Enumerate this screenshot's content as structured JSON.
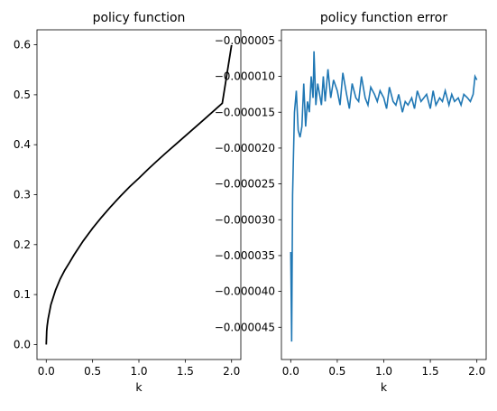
{
  "chart_data": [
    {
      "type": "line",
      "title": "policy function",
      "xlabel": "k",
      "ylabel": "",
      "xlim": [
        -0.1,
        2.1
      ],
      "ylim": [
        -0.03,
        0.63
      ],
      "xticks": [
        0.0,
        0.5,
        1.0,
        1.5,
        2.0
      ],
      "xtick_labels": [
        "0.0",
        "0.5",
        "1.0",
        "1.5",
        "2.0"
      ],
      "yticks": [
        0.0,
        0.1,
        0.2,
        0.3,
        0.4,
        0.5,
        0.6
      ],
      "ytick_labels": [
        "0.0",
        "0.1",
        "0.2",
        "0.3",
        "0.4",
        "0.5",
        "0.6"
      ],
      "grid": false,
      "colors": {
        "line": "#000000"
      },
      "series": [
        {
          "x": [
            0.0,
            0.005,
            0.01,
            0.02,
            0.05,
            0.1,
            0.15,
            0.2,
            0.25,
            0.3,
            0.4,
            0.5,
            0.6,
            0.7,
            0.8,
            0.9,
            1.0,
            1.1,
            1.2,
            1.3,
            1.4,
            1.5,
            1.6,
            1.7,
            1.8,
            1.9,
            2.0
          ],
          "y": [
            0.0,
            0.0272,
            0.0373,
            0.051,
            0.0797,
            0.1088,
            0.131,
            0.1488,
            0.1638,
            0.1795,
            0.2077,
            0.2327,
            0.2555,
            0.2768,
            0.2968,
            0.3159,
            0.333,
            0.3511,
            0.3683,
            0.385,
            0.4012,
            0.4175,
            0.4337,
            0.45,
            0.4665,
            0.483,
            0.5995
          ]
        }
      ]
    },
    {
      "type": "line",
      "title": "policy function error",
      "xlabel": "k",
      "ylabel": "",
      "xlim": [
        -0.1,
        2.1
      ],
      "ylim": [
        -4.95e-05,
        -3.5e-06
      ],
      "xticks": [
        0.0,
        0.5,
        1.0,
        1.5,
        2.0
      ],
      "xtick_labels": [
        "0.0",
        "0.5",
        "1.0",
        "1.5",
        "2.0"
      ],
      "yticks": [
        -5e-06,
        -1e-05,
        -1.5e-05,
        -2e-05,
        -2.5e-05,
        -3e-05,
        -3.5e-05,
        -4e-05,
        -4.5e-05
      ],
      "ytick_labels": [
        "−0.000005",
        "−0.000010",
        "−0.000015",
        "−0.000020",
        "−0.000025",
        "−0.000030",
        "−0.000035",
        "−0.000040",
        "−0.000045"
      ],
      "grid": false,
      "colors": {
        "line": "#1f77b4"
      },
      "series": [
        {
          "x": [
            0.0,
            0.01,
            0.02,
            0.04,
            0.06,
            0.08,
            0.1,
            0.12,
            0.14,
            0.16,
            0.18,
            0.2,
            0.22,
            0.24,
            0.25,
            0.27,
            0.29,
            0.31,
            0.33,
            0.35,
            0.37,
            0.4,
            0.43,
            0.46,
            0.5,
            0.53,
            0.56,
            0.6,
            0.63,
            0.66,
            0.7,
            0.73,
            0.76,
            0.8,
            0.83,
            0.86,
            0.9,
            0.93,
            0.96,
            1.0,
            1.03,
            1.06,
            1.1,
            1.13,
            1.16,
            1.2,
            1.23,
            1.26,
            1.3,
            1.33,
            1.36,
            1.4,
            1.43,
            1.46,
            1.5,
            1.53,
            1.56,
            1.6,
            1.63,
            1.66,
            1.7,
            1.73,
            1.76,
            1.8,
            1.83,
            1.86,
            1.9,
            1.93,
            1.96,
            1.98,
            2.0
          ],
          "y": [
            -3.45e-05,
            -4.7e-05,
            -2.65e-05,
            -1.5e-05,
            -1.2e-05,
            -1.75e-05,
            -1.85e-05,
            -1.7e-05,
            -1.1e-05,
            -1.7e-05,
            -1.35e-05,
            -1.5e-05,
            -1e-05,
            -1.3e-05,
            -6.5e-06,
            -1.4e-05,
            -1.1e-05,
            -1.25e-05,
            -1.4e-05,
            -1e-05,
            -1.35e-05,
            -9e-06,
            -1.3e-05,
            -1.05e-05,
            -1.2e-05,
            -1.4e-05,
            -9.5e-06,
            -1.25e-05,
            -1.45e-05,
            -1.1e-05,
            -1.3e-05,
            -1.35e-05,
            -1e-05,
            -1.3e-05,
            -1.4e-05,
            -1.15e-05,
            -1.25e-05,
            -1.35e-05,
            -1.2e-05,
            -1.3e-05,
            -1.45e-05,
            -1.15e-05,
            -1.35e-05,
            -1.4e-05,
            -1.25e-05,
            -1.5e-05,
            -1.35e-05,
            -1.4e-05,
            -1.3e-05,
            -1.45e-05,
            -1.2e-05,
            -1.35e-05,
            -1.3e-05,
            -1.25e-05,
            -1.45e-05,
            -1.2e-05,
            -1.4e-05,
            -1.3e-05,
            -1.35e-05,
            -1.2e-05,
            -1.4e-05,
            -1.25e-05,
            -1.35e-05,
            -1.3e-05,
            -1.4e-05,
            -1.25e-05,
            -1.3e-05,
            -1.35e-05,
            -1.25e-05,
            -1e-05,
            -1.05e-05
          ]
        }
      ]
    }
  ]
}
